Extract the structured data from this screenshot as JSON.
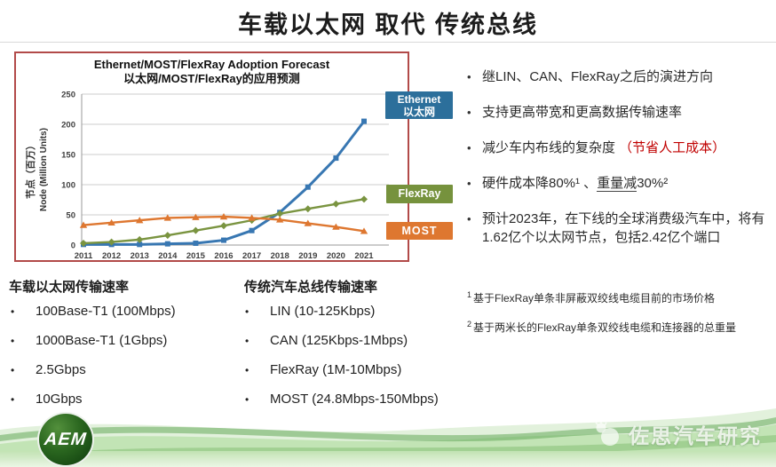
{
  "slide": {
    "title": "车载以太网 取代 传统总线"
  },
  "chart": {
    "border_color": "#b24a49",
    "legend": {
      "ethernet_en": "Ethernet",
      "ethernet_zh": "以太网",
      "flexray": "FlexRay",
      "most": "MOST",
      "ethernet_color": "#2c6f9b",
      "flexray_color": "#76923d",
      "most_color": "#de7730"
    }
  },
  "chart_data": {
    "type": "line",
    "title": "Ethernet/MOST/FlexRay Adoption Forecast",
    "subtitle": "以太网/MOST/FlexRay的应用预测",
    "ylabel_zh": "节点（百万）",
    "ylabel_en": "Node (Million Units)",
    "ylim": [
      0,
      250
    ],
    "yticks": [
      0,
      50,
      100,
      150,
      200,
      250
    ],
    "grid": "horizontal",
    "legend_position": "right",
    "categories": [
      "2011",
      "2012",
      "2013",
      "2014",
      "2015",
      "2016",
      "2017",
      "2018",
      "2019",
      "2020",
      "2021"
    ],
    "series": [
      {
        "name": "Ethernet 以太网",
        "color": "#3877b2",
        "marker": "square",
        "values": [
          1,
          1,
          1,
          2,
          3,
          8,
          24,
          54,
          96,
          144,
          205
        ]
      },
      {
        "name": "FlexRay",
        "color": "#7a9440",
        "marker": "diamond",
        "values": [
          3,
          5,
          9,
          16,
          24,
          32,
          41,
          52,
          60,
          68,
          76
        ]
      },
      {
        "name": "MOST",
        "color": "#de7730",
        "marker": "triangle",
        "values": [
          33,
          37,
          41,
          45,
          46,
          47,
          45,
          42,
          36,
          30,
          23
        ]
      }
    ]
  },
  "right_panel": {
    "bullets": {
      "b1": "继LIN、CAN、FlexRay之后的演进方向",
      "b2": "支持更高带宽和更高数据传输速率",
      "b3_text": "减少车内布线的复杂度 ",
      "b3_red": "（节省人工成本）",
      "b4_a": "硬件成本降80%¹ 、",
      "b4_u": "重量减",
      "b4_b": "30%²",
      "b5": "预计2023年，在下线的全球消费级汽车中，将有1.62亿个以太网节点，包括2.42亿个端口"
    },
    "footnotes": {
      "f1_sup": "1",
      "f1_text": "基于FlexRay单条非屏蔽双绞线电缆目前的市场价格",
      "f2_sup": "2",
      "f2_text": "基于两米长的FlexRay单条双绞线电缆和连接器的总重量"
    }
  },
  "speed_lists": {
    "ethernet": {
      "header": "车载以太网传输速率",
      "items": [
        "100Base-T1 (100Mbps)",
        "1000Base-T1 (1Gbps)",
        "2.5Gbps",
        "10Gbps"
      ]
    },
    "traditional": {
      "header": "传统汽车总线传输速率",
      "items": [
        "LIN (10-125Kbps)",
        "CAN (125Kbps-1Mbps)",
        "FlexRay (1M-10Mbps)",
        "MOST (24.8Mbps-150Mbps)"
      ]
    }
  },
  "footer": {
    "logo_text": "AEM",
    "watermark": "佐思汽车研究"
  }
}
